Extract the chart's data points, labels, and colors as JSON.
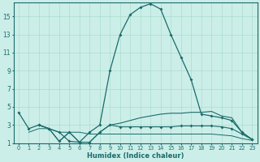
{
  "xlabel": "Humidex (Indice chaleur)",
  "bg_color": "#cceee8",
  "grid_color": "#aaddcc",
  "line_color": "#1a6b6b",
  "xlim": [
    -0.5,
    23.5
  ],
  "ylim": [
    1,
    16.5
  ],
  "xticks": [
    0,
    1,
    2,
    3,
    4,
    5,
    6,
    7,
    8,
    9,
    10,
    11,
    12,
    13,
    14,
    15,
    16,
    17,
    18,
    19,
    20,
    21,
    22,
    23
  ],
  "yticks": [
    1,
    3,
    5,
    7,
    9,
    11,
    13,
    15
  ],
  "line1_x": [
    0,
    1,
    2,
    3,
    4,
    5,
    6,
    7,
    8,
    9,
    10,
    11,
    12,
    13,
    14,
    15,
    16,
    17,
    18,
    19,
    20,
    21,
    22,
    23
  ],
  "line1_y": [
    4.4,
    2.6,
    3.0,
    2.6,
    2.2,
    1.2,
    1.1,
    2.2,
    3.0,
    9.0,
    13.0,
    15.2,
    16.0,
    16.4,
    15.8,
    13.0,
    10.5,
    8.0,
    4.2,
    4.0,
    3.8,
    3.5,
    2.2,
    1.4
  ],
  "line2_x": [
    2,
    3,
    4,
    5,
    6,
    7,
    8,
    9,
    10,
    11,
    12,
    13,
    14,
    15,
    16,
    17,
    18,
    19,
    20,
    21,
    22,
    23
  ],
  "line2_y": [
    3.0,
    2.6,
    1.2,
    2.2,
    1.1,
    1.1,
    2.2,
    3.0,
    2.8,
    2.8,
    2.8,
    2.8,
    2.8,
    2.8,
    2.9,
    2.9,
    2.9,
    2.9,
    2.8,
    2.6,
    2.0,
    1.4
  ],
  "line3_x": [
    2,
    3,
    4,
    5,
    6,
    7,
    8,
    9,
    10,
    11,
    12,
    13,
    14,
    15,
    16,
    17,
    18,
    19,
    20,
    21,
    22,
    23
  ],
  "line3_y": [
    3.0,
    2.6,
    1.2,
    2.2,
    1.1,
    1.1,
    2.2,
    3.0,
    3.2,
    3.5,
    3.8,
    4.0,
    4.2,
    4.3,
    4.3,
    4.4,
    4.4,
    4.5,
    4.0,
    3.8,
    2.2,
    1.4
  ],
  "line4_x": [
    1,
    2,
    3,
    4,
    5,
    6,
    7,
    8,
    9,
    10,
    11,
    12,
    13,
    14,
    15,
    16,
    17,
    18,
    19,
    20,
    21,
    22,
    23
  ],
  "line4_y": [
    2.2,
    2.6,
    2.6,
    2.2,
    2.2,
    2.2,
    2.0,
    2.0,
    2.0,
    2.0,
    2.0,
    2.0,
    2.0,
    2.0,
    2.0,
    2.0,
    2.0,
    2.0,
    2.0,
    1.9,
    1.8,
    1.5,
    1.3
  ]
}
